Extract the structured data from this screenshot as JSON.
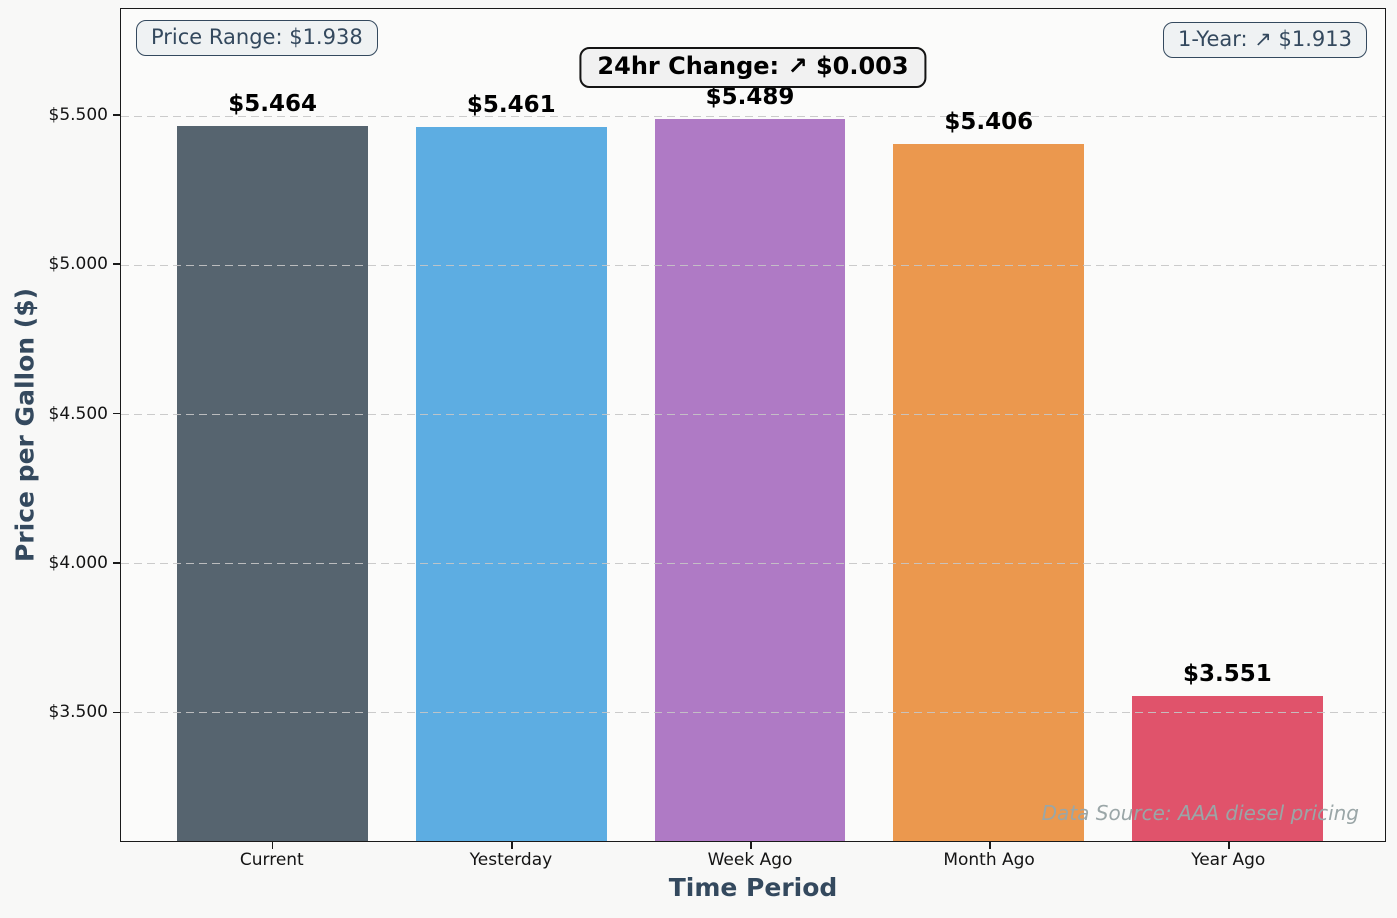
{
  "chart_data": {
    "type": "bar",
    "categories": [
      "Current",
      "Yesterday",
      "Week Ago",
      "Month Ago",
      "Year Ago"
    ],
    "values": [
      5.464,
      5.461,
      5.489,
      5.406,
      3.551
    ],
    "bar_labels": [
      "$5.464",
      "$5.461",
      "$5.489",
      "$5.406",
      "$3.551"
    ],
    "bar_colors": [
      "#56646F",
      "#5DADE2",
      "#AF7AC5",
      "#EB984E",
      "#E0536B"
    ],
    "title": "",
    "xlabel": "Time Period",
    "ylabel": "Price per Gallon ($)",
    "yticks": [
      5.5,
      5.0,
      4.5,
      4.0,
      3.5
    ],
    "ytick_labels": [
      "$5.500",
      "$5.000",
      "$4.500",
      "$4.000",
      "$3.500"
    ],
    "ylim": [
      3.066,
      5.858
    ],
    "xlim": [
      -0.635,
      4.66
    ],
    "bar_width": 0.8,
    "grid": {
      "axis": "y",
      "style": "dashed",
      "drawn_over_bars": true
    },
    "legend": "none"
  },
  "annotations": {
    "price_range": "Price Range: $1.938",
    "change_24hr": "24hr Change: ↗ $0.003",
    "one_year": "1-Year: ↗ $1.913",
    "data_source": "Data Source: AAA diesel pricing"
  },
  "colors": {
    "axis_title": "#34495E",
    "note_text": "#34495E",
    "note_border": "#34495E",
    "change_border": "#141414",
    "tick_label": "#141414",
    "figure_bg": "#f8f8f7",
    "plot_bg": "#fbfbfa",
    "gridline": "#c6c6c6",
    "data_source_text": "#9AA6A7"
  }
}
